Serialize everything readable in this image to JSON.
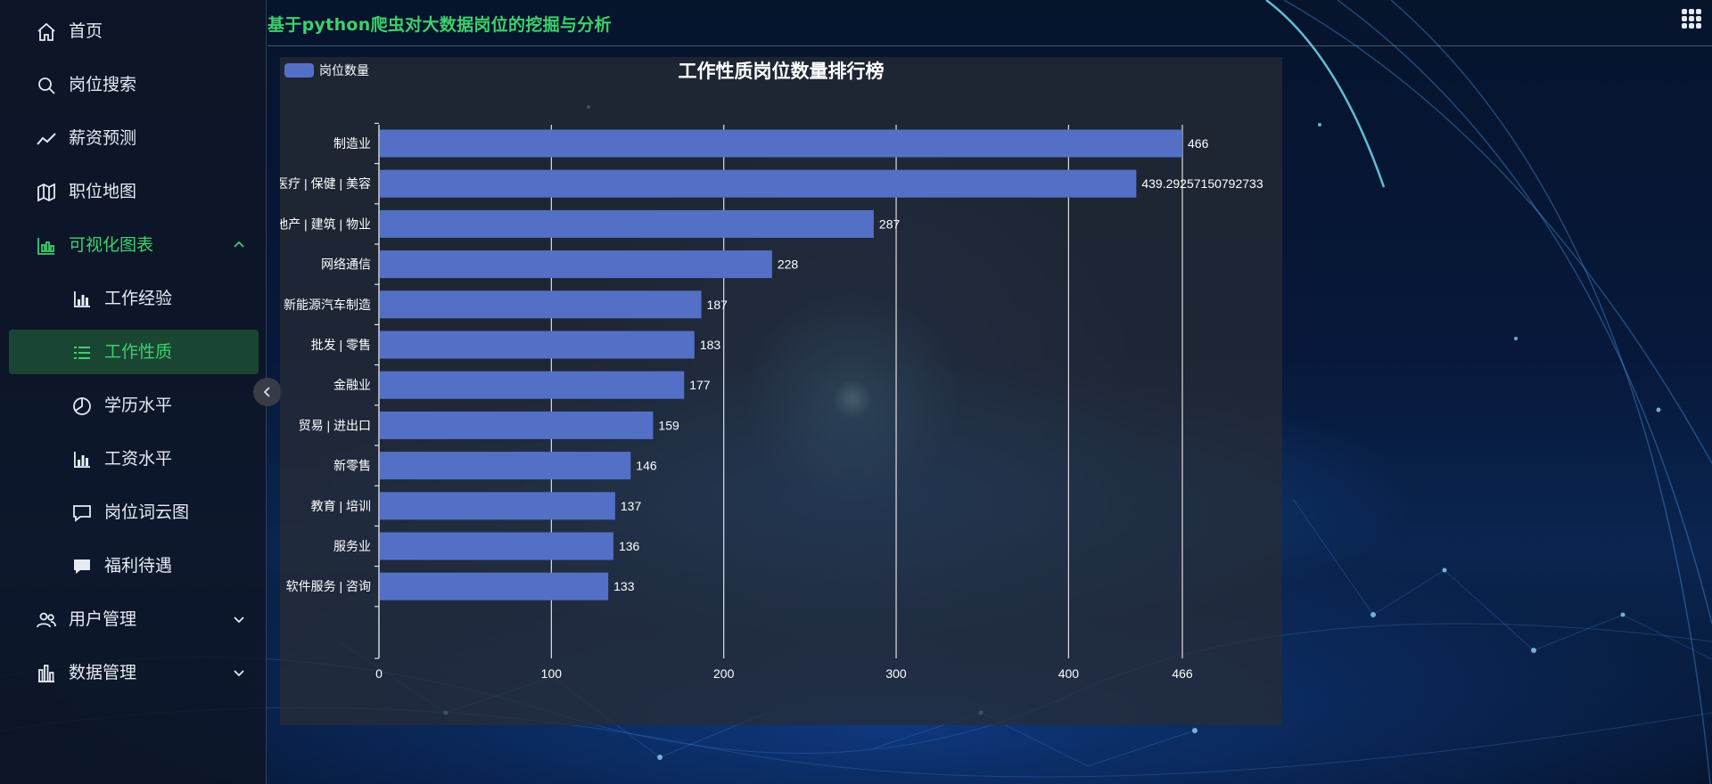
{
  "header": {
    "title": "基于python爬虫对大数据岗位的挖掘与分析"
  },
  "sidebar": {
    "items": [
      {
        "label": "首页",
        "icon": "home-icon"
      },
      {
        "label": "岗位搜索",
        "icon": "search-icon"
      },
      {
        "label": "薪资预测",
        "icon": "trend-icon"
      },
      {
        "label": "职位地图",
        "icon": "map-icon"
      },
      {
        "label": "可视化图表",
        "icon": "chart-icon",
        "expanded": true
      },
      {
        "label": "工作经验",
        "icon": "bar-chart-icon"
      },
      {
        "label": "工作性质",
        "icon": "list-icon",
        "active": true
      },
      {
        "label": "学历水平",
        "icon": "pie-chart-icon"
      },
      {
        "label": "工资水平",
        "icon": "bar-chart-icon"
      },
      {
        "label": "岗位词云图",
        "icon": "comment-icon"
      },
      {
        "label": "福利待遇",
        "icon": "chat-bubble-icon"
      },
      {
        "label": "用户管理",
        "icon": "users-icon"
      },
      {
        "label": "数据管理",
        "icon": "database-icon"
      }
    ]
  },
  "colors": {
    "accent": "#3dd06c",
    "bar": "#5470c6",
    "sidebar_active_bg": "#276e3c"
  },
  "chart_data": {
    "type": "bar",
    "orientation": "horizontal",
    "title": "工作性质岗位数量排行榜",
    "legend": {
      "label": "岗位数量",
      "position": "top-left"
    },
    "series": [
      {
        "name": "岗位数量",
        "values": [
          466,
          439.29257150792733,
          287,
          228,
          187,
          183,
          177,
          159,
          146,
          137,
          136,
          133
        ]
      }
    ],
    "categories": [
      "制造业",
      "医疗 | 保健 | 美容",
      "房地产 | 建筑 | 物业",
      "网络通信",
      "新能源汽车制造",
      "批发 | 零售",
      "金融业",
      "贸易 | 进出口",
      "新零售",
      "教育 | 培训",
      "服务业",
      "软件服务 | 咨询"
    ],
    "data_labels": [
      "466",
      "439.29257150792733",
      "287",
      "228",
      "187",
      "183",
      "177",
      "159",
      "146",
      "137",
      "136",
      "133"
    ],
    "x_ticks": [
      "0",
      "100",
      "200",
      "300",
      "400",
      "466"
    ],
    "xlim": [
      0,
      466
    ],
    "grid": "vertical"
  }
}
